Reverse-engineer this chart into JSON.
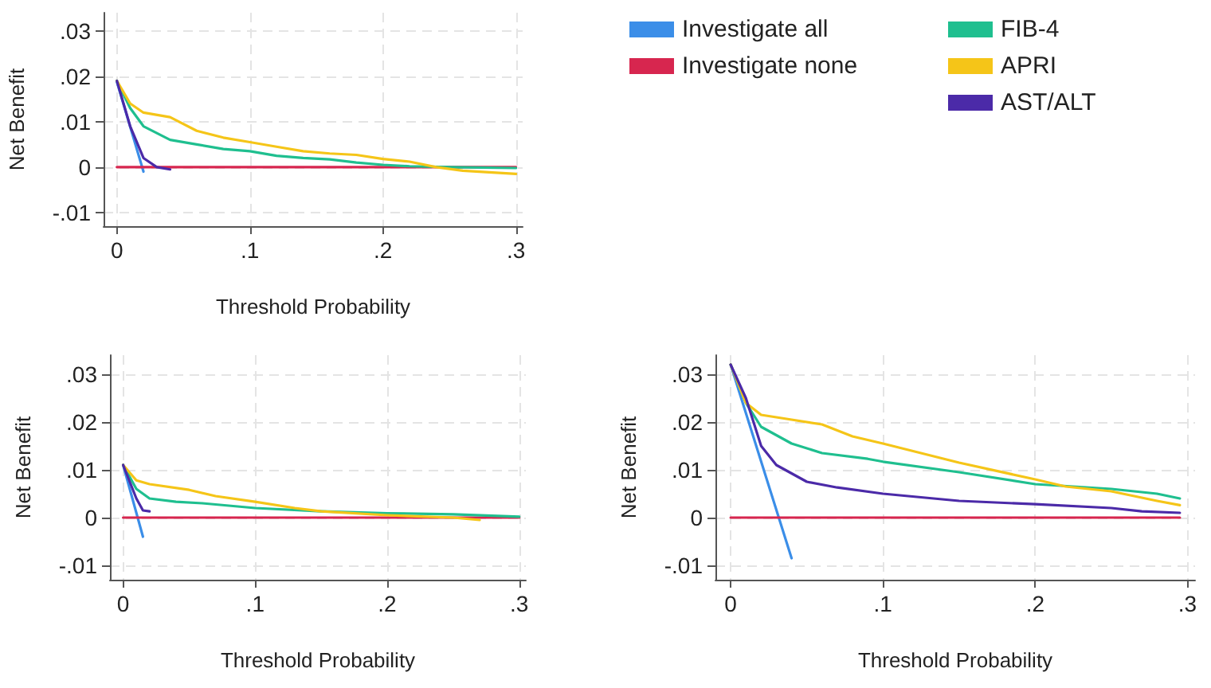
{
  "chart_data": [
    {
      "type": "line",
      "xlabel": "Threshold Probability",
      "ylabel": "Net Benefit",
      "xlim": [
        -0.01,
        0.305
      ],
      "ylim": [
        -0.013,
        0.034
      ],
      "xticks": [
        {
          "value": 0,
          "label": "0"
        },
        {
          "value": 0.1,
          "label": ".1"
        },
        {
          "value": 0.2,
          "label": ".2"
        },
        {
          "value": 0.3,
          "label": ".3"
        }
      ],
      "yticks": [
        {
          "value": -0.01,
          "label": "-.01"
        },
        {
          "value": 0,
          "label": "0"
        },
        {
          "value": 0.01,
          "label": ".01"
        },
        {
          "value": 0.02,
          "label": ".02"
        },
        {
          "value": 0.03,
          "label": ".03"
        }
      ],
      "grid": true,
      "legend": "top right",
      "line_style": "solid",
      "marker": "none",
      "series": [
        {
          "name": "Investigate all",
          "color": "#3b8ee8",
          "x": [
            0,
            0.02
          ],
          "values": [
            0.0188,
            -0.001
          ]
        },
        {
          "name": "Investigate none",
          "color": "#d7264f",
          "x": [
            0,
            0.3
          ],
          "values": [
            0,
            0
          ]
        },
        {
          "name": "FIB-4",
          "color": "#1fbf8f",
          "x": [
            0,
            0.01,
            0.02,
            0.04,
            0.06,
            0.08,
            0.1,
            0.12,
            0.14,
            0.16,
            0.18,
            0.2,
            0.22,
            0.25,
            0.3
          ],
          "values": [
            0.019,
            0.013,
            0.009,
            0.006,
            0.005,
            0.004,
            0.0035,
            0.0025,
            0.002,
            0.0017,
            0.001,
            0.0005,
            0.0002,
            0,
            -0.0002
          ]
        },
        {
          "name": "APRI",
          "color": "#f5c518",
          "x": [
            0,
            0.01,
            0.02,
            0.04,
            0.06,
            0.08,
            0.1,
            0.12,
            0.14,
            0.16,
            0.18,
            0.2,
            0.22,
            0.24,
            0.26,
            0.3
          ],
          "values": [
            0.019,
            0.014,
            0.012,
            0.011,
            0.008,
            0.0065,
            0.0055,
            0.0045,
            0.0035,
            0.003,
            0.0027,
            0.0018,
            0.0012,
            0,
            -0.0008,
            -0.0015
          ]
        },
        {
          "name": "AST/ALT",
          "color": "#4b2aa8",
          "x": [
            0,
            0.01,
            0.02,
            0.03,
            0.04
          ],
          "values": [
            0.019,
            0.009,
            0.002,
            0,
            -0.0005
          ]
        }
      ]
    },
    {
      "type": "line",
      "xlabel": "Threshold Probability",
      "ylabel": "Net Benefit",
      "xlim": [
        -0.01,
        0.305
      ],
      "ylim": [
        -0.013,
        0.034
      ],
      "xticks": [
        {
          "value": 0,
          "label": "0"
        },
        {
          "value": 0.1,
          "label": ".1"
        },
        {
          "value": 0.2,
          "label": ".2"
        },
        {
          "value": 0.3,
          "label": ".3"
        }
      ],
      "yticks": [
        {
          "value": -0.01,
          "label": "-.01"
        },
        {
          "value": 0,
          "label": "0"
        },
        {
          "value": 0.01,
          "label": ".01"
        },
        {
          "value": 0.02,
          "label": ".02"
        },
        {
          "value": 0.03,
          "label": ".03"
        }
      ],
      "grid": true,
      "line_style": "solid",
      "marker": "none",
      "series": [
        {
          "color": "#3b8ee8",
          "x": [
            0,
            0.015
          ],
          "values": [
            0.011,
            -0.004
          ]
        },
        {
          "color": "#d7264f",
          "x": [
            0,
            0.3
          ],
          "values": [
            0,
            0
          ]
        },
        {
          "color": "#1fbf8f",
          "x": [
            0,
            0.01,
            0.02,
            0.04,
            0.06,
            0.1,
            0.15,
            0.2,
            0.25,
            0.3
          ],
          "values": [
            0.011,
            0.006,
            0.004,
            0.0033,
            0.003,
            0.002,
            0.0013,
            0.0009,
            0.0007,
            0.0002
          ]
        },
        {
          "color": "#f5c518",
          "x": [
            0,
            0.01,
            0.02,
            0.05,
            0.07,
            0.1,
            0.13,
            0.15,
            0.2,
            0.25,
            0.27
          ],
          "values": [
            0.011,
            0.0078,
            0.007,
            0.0058,
            0.0045,
            0.0033,
            0.002,
            0.0013,
            0.0005,
            0,
            -0.0005
          ]
        },
        {
          "color": "#4b2aa8",
          "x": [
            0,
            0.01,
            0.015,
            0.02
          ],
          "values": [
            0.011,
            0.004,
            0.0015,
            0.0013
          ]
        }
      ]
    },
    {
      "type": "line",
      "xlabel": "Threshold Probability",
      "ylabel": "Net Benefit",
      "xlim": [
        -0.01,
        0.305
      ],
      "ylim": [
        -0.013,
        0.034
      ],
      "xticks": [
        {
          "value": 0,
          "label": "0"
        },
        {
          "value": 0.1,
          "label": ".1"
        },
        {
          "value": 0.2,
          "label": ".2"
        },
        {
          "value": 0.3,
          "label": ".3"
        }
      ],
      "yticks": [
        {
          "value": -0.01,
          "label": "-.01"
        },
        {
          "value": 0,
          "label": "0"
        },
        {
          "value": 0.01,
          "label": ".01"
        },
        {
          "value": 0.02,
          "label": ".02"
        },
        {
          "value": 0.03,
          "label": ".03"
        }
      ],
      "grid": true,
      "line_style": "solid",
      "marker": "none",
      "series": [
        {
          "color": "#3b8ee8",
          "x": [
            0,
            0.04
          ],
          "values": [
            0.032,
            -0.0085
          ]
        },
        {
          "color": "#d7264f",
          "x": [
            0,
            0.295
          ],
          "values": [
            0,
            0
          ]
        },
        {
          "color": "#1fbf8f",
          "x": [
            0,
            0.01,
            0.02,
            0.04,
            0.06,
            0.09,
            0.1,
            0.15,
            0.2,
            0.25,
            0.28,
            0.295
          ],
          "values": [
            0.032,
            0.024,
            0.019,
            0.0155,
            0.0135,
            0.0123,
            0.0117,
            0.0095,
            0.007,
            0.006,
            0.005,
            0.004
          ]
        },
        {
          "color": "#f5c518",
          "x": [
            0,
            0.01,
            0.02,
            0.04,
            0.06,
            0.08,
            0.1,
            0.15,
            0.2,
            0.22,
            0.25,
            0.28,
            0.295
          ],
          "values": [
            0.032,
            0.024,
            0.0215,
            0.0205,
            0.0195,
            0.017,
            0.0155,
            0.0115,
            0.008,
            0.0065,
            0.0055,
            0.0035,
            0.0026
          ]
        },
        {
          "color": "#4b2aa8",
          "x": [
            0,
            0.01,
            0.02,
            0.03,
            0.05,
            0.07,
            0.1,
            0.15,
            0.2,
            0.25,
            0.27,
            0.295
          ],
          "values": [
            0.032,
            0.025,
            0.015,
            0.011,
            0.0075,
            0.0063,
            0.005,
            0.0035,
            0.0028,
            0.002,
            0.0013,
            0.001
          ]
        }
      ]
    }
  ]
}
